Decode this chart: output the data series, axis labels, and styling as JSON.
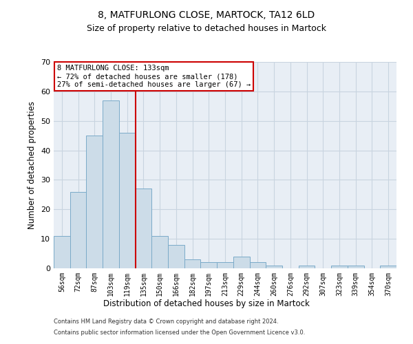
{
  "title": "8, MATFURLONG CLOSE, MARTOCK, TA12 6LD",
  "subtitle": "Size of property relative to detached houses in Martock",
  "xlabel": "Distribution of detached houses by size in Martock",
  "ylabel": "Number of detached properties",
  "bar_labels": [
    "56sqm",
    "72sqm",
    "87sqm",
    "103sqm",
    "119sqm",
    "135sqm",
    "150sqm",
    "166sqm",
    "182sqm",
    "197sqm",
    "213sqm",
    "229sqm",
    "244sqm",
    "260sqm",
    "276sqm",
    "292sqm",
    "307sqm",
    "323sqm",
    "339sqm",
    "354sqm",
    "370sqm"
  ],
  "bar_values": [
    11,
    26,
    45,
    57,
    46,
    27,
    11,
    8,
    3,
    2,
    2,
    4,
    2,
    1,
    0,
    1,
    0,
    1,
    1,
    0,
    1
  ],
  "bar_color": "#ccdce8",
  "bar_edge_color": "#7aaac8",
  "ref_bar_index": 5,
  "annotation_text": "8 MATFURLONG CLOSE: 133sqm\n← 72% of detached houses are smaller (178)\n27% of semi-detached houses are larger (67) →",
  "annotation_box_color": "#cc0000",
  "ylim": [
    0,
    70
  ],
  "yticks": [
    0,
    10,
    20,
    30,
    40,
    50,
    60,
    70
  ],
  "footer_line1": "Contains HM Land Registry data © Crown copyright and database right 2024.",
  "footer_line2": "Contains public sector information licensed under the Open Government Licence v3.0.",
  "bg_color": "#ffffff",
  "plot_bg_color": "#e8eef5",
  "grid_color": "#c8d4e0",
  "title_fontsize": 10,
  "subtitle_fontsize": 9,
  "tick_fontsize": 7,
  "ylabel_fontsize": 8.5,
  "xlabel_fontsize": 8.5,
  "annotation_fontsize": 7.5
}
